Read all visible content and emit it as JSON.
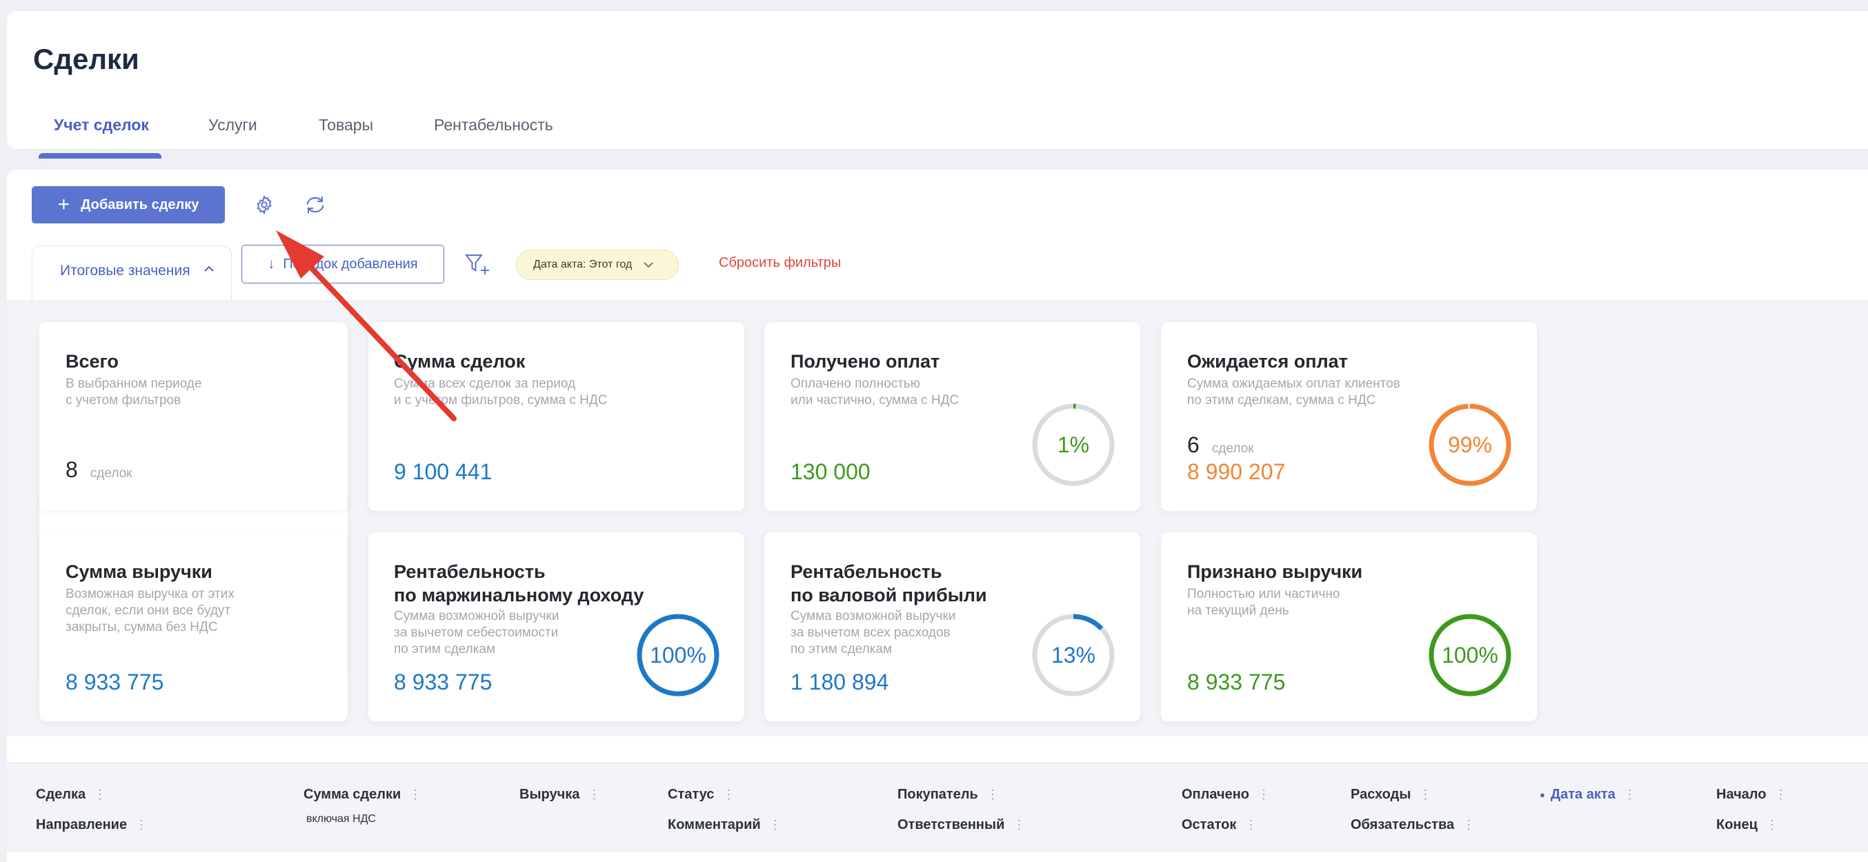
{
  "header": {
    "title": "Сделки",
    "tabs": [
      {
        "label": "Учет сделок",
        "active": true
      },
      {
        "label": "Услуги"
      },
      {
        "label": "Товары"
      },
      {
        "label": "Рентабельность"
      }
    ]
  },
  "toolbar": {
    "add_label": "Добавить сделку",
    "settings_icon": "gear-icon",
    "refresh_icon": "refresh-icon"
  },
  "filters": {
    "totals_tab": "Итоговые значения",
    "order_label": "Порядок добавления",
    "date_chip": "Дата акта: Этот год",
    "reset_label": "Сбросить фильтры"
  },
  "cards": [
    {
      "title": "Всего",
      "desc1": "В выбранном периоде",
      "desc2": "с учетом фильтров",
      "count": "8",
      "unit": "сделок"
    },
    {
      "title": "Сумма сделок",
      "desc1": "Сумма всех сделок за период",
      "desc2": "и с учетом фильтров, сумма с НДС",
      "value": "9 100 441"
    },
    {
      "title": "Получено оплат",
      "desc1": "Оплачено полностью",
      "desc2": "или частично, сумма с НДС",
      "value": "130 000",
      "percent_label": "1%",
      "percent": 1
    },
    {
      "title": "Ожидается оплат",
      "desc1": "Сумма ожидаемых оплат клиентов",
      "desc2": "по этим сделкам, сумма с НДС",
      "count": "6",
      "unit": "сделок",
      "value": "8 990 207",
      "percent_label": "99%",
      "percent": 99
    },
    {
      "title": "Сумма выручки",
      "desc1": "Возможная выручка от этих",
      "desc2": "сделок, если они все будут",
      "desc3": "закрыты, сумма без НДС",
      "value": "8 933 775"
    },
    {
      "title1": "Рентабельность",
      "title2": "по маржинальному доходу",
      "desc1": "Сумма возможной выручки",
      "desc2": "за вычетом себестоимости",
      "desc3": "по этим сделкам",
      "value": "8 933 775",
      "percent_label": "100%",
      "percent": 100
    },
    {
      "title1": "Рентабельность",
      "title2": "по валовой прибыли",
      "desc1": "Сумма возможной выручки",
      "desc2": "за вычетом всех расходов",
      "desc3": "по этим сделкам",
      "value": "1 180 894",
      "percent_label": "13%",
      "percent": 13
    },
    {
      "title": "Признано выручки",
      "desc1": "Полностью или частично",
      "desc2": "на текущий день",
      "value": "8 933 775",
      "percent_label": "100%",
      "percent": 100
    }
  ],
  "table": {
    "columns": {
      "deal": "Сделка",
      "direction": "Направление",
      "deal_sum": "Сумма сделки",
      "vat_note": "включая НДС",
      "revenue": "Выручка",
      "status": "Статус",
      "comment": "Комментарий",
      "buyer": "Покупатель",
      "responsible": "Ответственный",
      "paid": "Оплачено",
      "balance": "Остаток",
      "expenses": "Расходы",
      "obligations": "Обязательства",
      "act_date": "Дата акта",
      "start": "Начало",
      "end": "Конец"
    }
  },
  "colors": {
    "accent": "#5b74d0",
    "blue_value": "#1e78c8",
    "green_value": "#3d9a1e",
    "orange_value": "#f28535",
    "danger": "#e0473a",
    "annotation_arrow": "#e53a2f"
  }
}
